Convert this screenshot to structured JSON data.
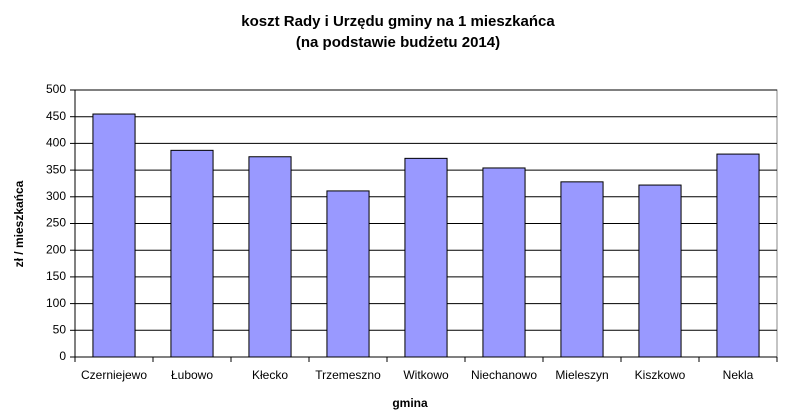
{
  "chart_data": {
    "type": "bar",
    "title": "koszt Rady i Urzędu gminy na 1 mieszkańca",
    "subtitle": "(na podstawie budżetu 2014)",
    "x_label": "gmina",
    "y_label": "zł / mieszkańca",
    "categories": [
      "Czerniejewo",
      "Łubowo",
      "Kłecko",
      "Trzemeszno",
      "Witkowo",
      "Niechanowo",
      "Mieleszyn",
      "Kiszkowo",
      "Nekla"
    ],
    "values": [
      455,
      387,
      375,
      311,
      372,
      354,
      328,
      322,
      380
    ],
    "color": "#9999ff",
    "ylim": [
      0,
      500
    ],
    "yticks": [
      0,
      50,
      100,
      150,
      200,
      250,
      300,
      350,
      400,
      450,
      500
    ],
    "grid": true
  }
}
